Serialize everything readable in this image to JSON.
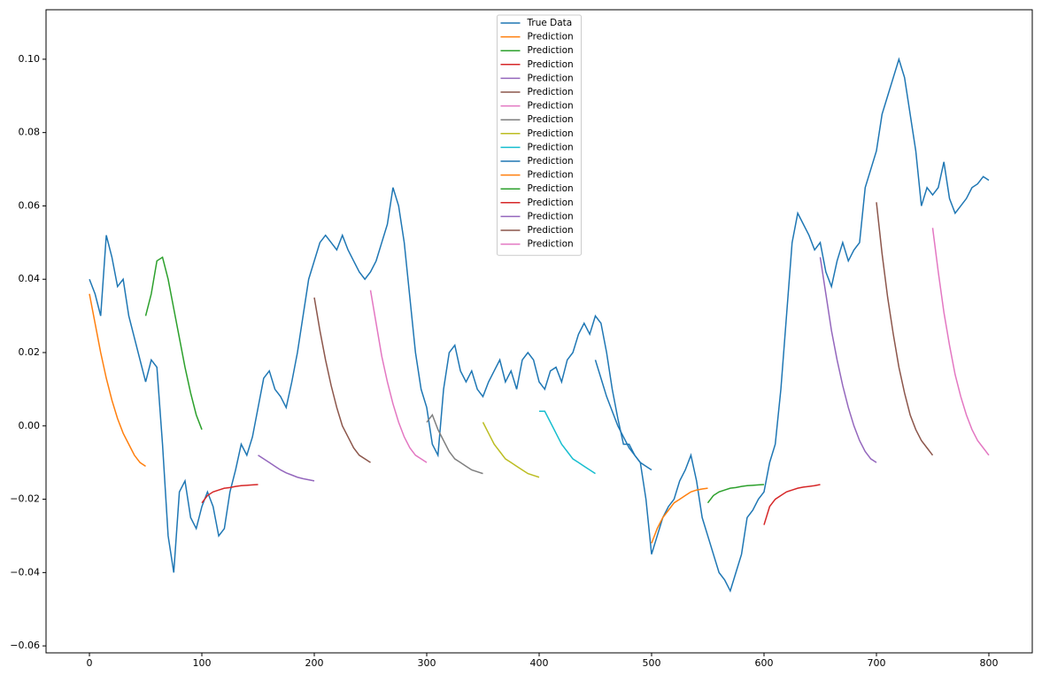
{
  "chart_data": {
    "type": "line",
    "xlim": [
      -38.6,
      838.6
    ],
    "ylim": [
      -0.0619,
      0.1135
    ],
    "xticks": [
      0,
      100,
      200,
      300,
      400,
      500,
      600,
      700,
      800
    ],
    "yticks": [
      {
        "value": -0.06,
        "label": "−0.06"
      },
      {
        "value": -0.04,
        "label": "−0.04"
      },
      {
        "value": -0.02,
        "label": "−0.02"
      },
      {
        "value": 0,
        "label": "0.00"
      },
      {
        "value": 0.02,
        "label": "0.02"
      },
      {
        "value": 0.04,
        "label": "0.04"
      },
      {
        "value": 0.06,
        "label": "0.06"
      },
      {
        "value": 0.08,
        "label": "0.08"
      },
      {
        "value": 0.1,
        "label": "0.10"
      }
    ],
    "grid": false,
    "legend": "upper center",
    "series": [
      {
        "name": "True Data",
        "color": "#1f77b4",
        "x": [
          0,
          5,
          10,
          15,
          20,
          25,
          30,
          35,
          40,
          45,
          50,
          55,
          60,
          65,
          70,
          75,
          80,
          85,
          90,
          95,
          100,
          105,
          110,
          115,
          120,
          125,
          130,
          135,
          140,
          145,
          150,
          155,
          160,
          165,
          170,
          175,
          180,
          185,
          190,
          195,
          200,
          205,
          210,
          215,
          220,
          225,
          230,
          235,
          240,
          245,
          250,
          255,
          260,
          265,
          270,
          275,
          280,
          285,
          290,
          295,
          300,
          305,
          310,
          315,
          320,
          325,
          330,
          335,
          340,
          345,
          350,
          355,
          360,
          365,
          370,
          375,
          380,
          385,
          390,
          395,
          400,
          405,
          410,
          415,
          420,
          425,
          430,
          435,
          440,
          445,
          450,
          455,
          460,
          465,
          470,
          475,
          480,
          485,
          490,
          495,
          500,
          505,
          510,
          515,
          520,
          525,
          530,
          535,
          540,
          545,
          550,
          555,
          560,
          565,
          570,
          575,
          580,
          585,
          590,
          595,
          600,
          605,
          610,
          615,
          620,
          625,
          630,
          635,
          640,
          645,
          650,
          655,
          660,
          665,
          670,
          675,
          680,
          685,
          690,
          695,
          700,
          705,
          710,
          715,
          720,
          725,
          730,
          735,
          740,
          745,
          750,
          755,
          760,
          765,
          770,
          775,
          780,
          785,
          790,
          795,
          800
        ],
        "values": [
          0.04,
          0.036,
          0.03,
          0.052,
          0.046,
          0.038,
          0.04,
          0.03,
          0.024,
          0.018,
          0.012,
          0.018,
          0.016,
          -0.005,
          -0.03,
          -0.04,
          -0.018,
          -0.015,
          -0.025,
          -0.028,
          -0.022,
          -0.018,
          -0.022,
          -0.03,
          -0.028,
          -0.018,
          -0.012,
          -0.005,
          -0.008,
          -0.003,
          0.005,
          0.013,
          0.015,
          0.01,
          0.008,
          0.005,
          0.012,
          0.02,
          0.03,
          0.04,
          0.045,
          0.05,
          0.052,
          0.05,
          0.048,
          0.052,
          0.048,
          0.045,
          0.042,
          0.04,
          0.042,
          0.045,
          0.05,
          0.055,
          0.065,
          0.06,
          0.05,
          0.035,
          0.02,
          0.01,
          0.005,
          -0.005,
          -0.008,
          0.01,
          0.02,
          0.022,
          0.015,
          0.012,
          0.015,
          0.01,
          0.008,
          0.012,
          0.015,
          0.018,
          0.012,
          0.015,
          0.01,
          0.018,
          0.02,
          0.018,
          0.012,
          0.01,
          0.015,
          0.016,
          0.012,
          0.018,
          0.02,
          0.025,
          0.028,
          0.025,
          0.03,
          0.028,
          0.02,
          0.01,
          0.002,
          -0.005,
          -0.005,
          -0.008,
          -0.01,
          -0.02,
          -0.035,
          -0.03,
          -0.025,
          -0.022,
          -0.02,
          -0.015,
          -0.012,
          -0.008,
          -0.015,
          -0.025,
          -0.03,
          -0.035,
          -0.04,
          -0.042,
          -0.045,
          -0.04,
          -0.035,
          -0.025,
          -0.023,
          -0.02,
          -0.018,
          -0.01,
          -0.005,
          0.01,
          0.03,
          0.05,
          0.058,
          0.055,
          0.052,
          0.048,
          0.05,
          0.042,
          0.038,
          0.045,
          0.05,
          0.045,
          0.048,
          0.05,
          0.065,
          0.07,
          0.075,
          0.085,
          0.09,
          0.095,
          0.1,
          0.095,
          0.085,
          0.075,
          0.06,
          0.065,
          0.063,
          0.065,
          0.072,
          0.062,
          0.058,
          0.06,
          0.062,
          0.065,
          0.066,
          0.068,
          0.067
        ]
      },
      {
        "name": "Prediction",
        "color": "#ff7f0e",
        "x": [
          0,
          5,
          10,
          15,
          20,
          25,
          30,
          35,
          40,
          45,
          50
        ],
        "values": [
          0.036,
          0.028,
          0.02,
          0.013,
          0.007,
          0.002,
          -0.002,
          -0.005,
          -0.008,
          -0.01,
          -0.011
        ]
      },
      {
        "name": "Prediction",
        "color": "#2ca02c",
        "x": [
          50,
          55,
          60,
          65,
          70,
          75,
          80,
          85,
          90,
          95,
          100
        ],
        "values": [
          0.03,
          0.036,
          0.045,
          0.046,
          0.04,
          0.032,
          0.024,
          0.016,
          0.009,
          0.003,
          -0.001
        ]
      },
      {
        "name": "Prediction",
        "color": "#d62728",
        "x": [
          100,
          105,
          110,
          115,
          120,
          125,
          130,
          135,
          140,
          145,
          150
        ],
        "values": [
          -0.021,
          -0.019,
          -0.018,
          -0.0175,
          -0.017,
          -0.0168,
          -0.0165,
          -0.0163,
          -0.0162,
          -0.0161,
          -0.016
        ]
      },
      {
        "name": "Prediction",
        "color": "#9467bd",
        "x": [
          150,
          155,
          160,
          165,
          170,
          175,
          180,
          185,
          190,
          195,
          200
        ],
        "values": [
          -0.008,
          -0.009,
          -0.01,
          -0.011,
          -0.012,
          -0.0128,
          -0.0134,
          -0.014,
          -0.0144,
          -0.0147,
          -0.015
        ]
      },
      {
        "name": "Prediction",
        "color": "#8c564b",
        "x": [
          200,
          205,
          210,
          215,
          220,
          225,
          230,
          235,
          240,
          245,
          250
        ],
        "values": [
          0.035,
          0.026,
          0.018,
          0.011,
          0.005,
          0.0,
          -0.003,
          -0.006,
          -0.008,
          -0.009,
          -0.01
        ]
      },
      {
        "name": "Prediction",
        "color": "#e377c2",
        "x": [
          250,
          255,
          260,
          265,
          270,
          275,
          280,
          285,
          290,
          295,
          300
        ],
        "values": [
          0.037,
          0.028,
          0.019,
          0.012,
          0.006,
          0.001,
          -0.003,
          -0.006,
          -0.008,
          -0.009,
          -0.01
        ]
      },
      {
        "name": "Prediction",
        "color": "#7f7f7f",
        "x": [
          300,
          305,
          310,
          315,
          320,
          325,
          330,
          335,
          340,
          345,
          350
        ],
        "values": [
          0.001,
          0.003,
          -0.001,
          -0.004,
          -0.007,
          -0.009,
          -0.01,
          -0.011,
          -0.012,
          -0.0125,
          -0.013
        ]
      },
      {
        "name": "Prediction",
        "color": "#bcbd22",
        "x": [
          350,
          355,
          360,
          365,
          370,
          375,
          380,
          385,
          390,
          395,
          400
        ],
        "values": [
          0.001,
          -0.002,
          -0.005,
          -0.007,
          -0.009,
          -0.01,
          -0.011,
          -0.012,
          -0.013,
          -0.0135,
          -0.014
        ]
      },
      {
        "name": "Prediction",
        "color": "#17becf",
        "x": [
          400,
          405,
          410,
          415,
          420,
          425,
          430,
          435,
          440,
          445,
          450
        ],
        "values": [
          0.004,
          0.004,
          0.001,
          -0.002,
          -0.005,
          -0.007,
          -0.009,
          -0.01,
          -0.011,
          -0.012,
          -0.013
        ]
      },
      {
        "name": "Prediction",
        "color": "#1f77b4",
        "x": [
          450,
          455,
          460,
          465,
          470,
          475,
          480,
          485,
          490,
          495,
          500
        ],
        "values": [
          0.018,
          0.013,
          0.008,
          0.004,
          0.0,
          -0.003,
          -0.006,
          -0.008,
          -0.01,
          -0.011,
          -0.012
        ]
      },
      {
        "name": "Prediction",
        "color": "#ff7f0e",
        "x": [
          500,
          505,
          510,
          515,
          520,
          525,
          530,
          535,
          540,
          545,
          550
        ],
        "values": [
          -0.032,
          -0.028,
          -0.025,
          -0.023,
          -0.021,
          -0.02,
          -0.019,
          -0.018,
          -0.0175,
          -0.0172,
          -0.017
        ]
      },
      {
        "name": "Prediction",
        "color": "#2ca02c",
        "x": [
          550,
          555,
          560,
          565,
          570,
          575,
          580,
          585,
          590,
          595,
          600
        ],
        "values": [
          -0.021,
          -0.019,
          -0.018,
          -0.0175,
          -0.017,
          -0.0168,
          -0.0165,
          -0.0163,
          -0.0162,
          -0.0161,
          -0.016
        ]
      },
      {
        "name": "Prediction",
        "color": "#d62728",
        "x": [
          600,
          605,
          610,
          615,
          620,
          625,
          630,
          635,
          640,
          645,
          650
        ],
        "values": [
          -0.027,
          -0.022,
          -0.02,
          -0.019,
          -0.018,
          -0.0175,
          -0.017,
          -0.0167,
          -0.0165,
          -0.0163,
          -0.016
        ]
      },
      {
        "name": "Prediction",
        "color": "#9467bd",
        "x": [
          650,
          655,
          660,
          665,
          670,
          675,
          680,
          685,
          690,
          695,
          700
        ],
        "values": [
          0.046,
          0.036,
          0.026,
          0.018,
          0.011,
          0.005,
          0.0,
          -0.004,
          -0.007,
          -0.009,
          -0.01
        ]
      },
      {
        "name": "Prediction",
        "color": "#8c564b",
        "x": [
          700,
          705,
          710,
          715,
          720,
          725,
          730,
          735,
          740,
          745,
          750
        ],
        "values": [
          0.061,
          0.047,
          0.035,
          0.025,
          0.016,
          0.009,
          0.003,
          -0.001,
          -0.004,
          -0.006,
          -0.008
        ]
      },
      {
        "name": "Prediction",
        "color": "#e377c2",
        "x": [
          750,
          755,
          760,
          765,
          770,
          775,
          780,
          785,
          790,
          795,
          800
        ],
        "values": [
          0.054,
          0.042,
          0.031,
          0.022,
          0.014,
          0.008,
          0.003,
          -0.001,
          -0.004,
          -0.006,
          -0.008
        ]
      }
    ]
  }
}
